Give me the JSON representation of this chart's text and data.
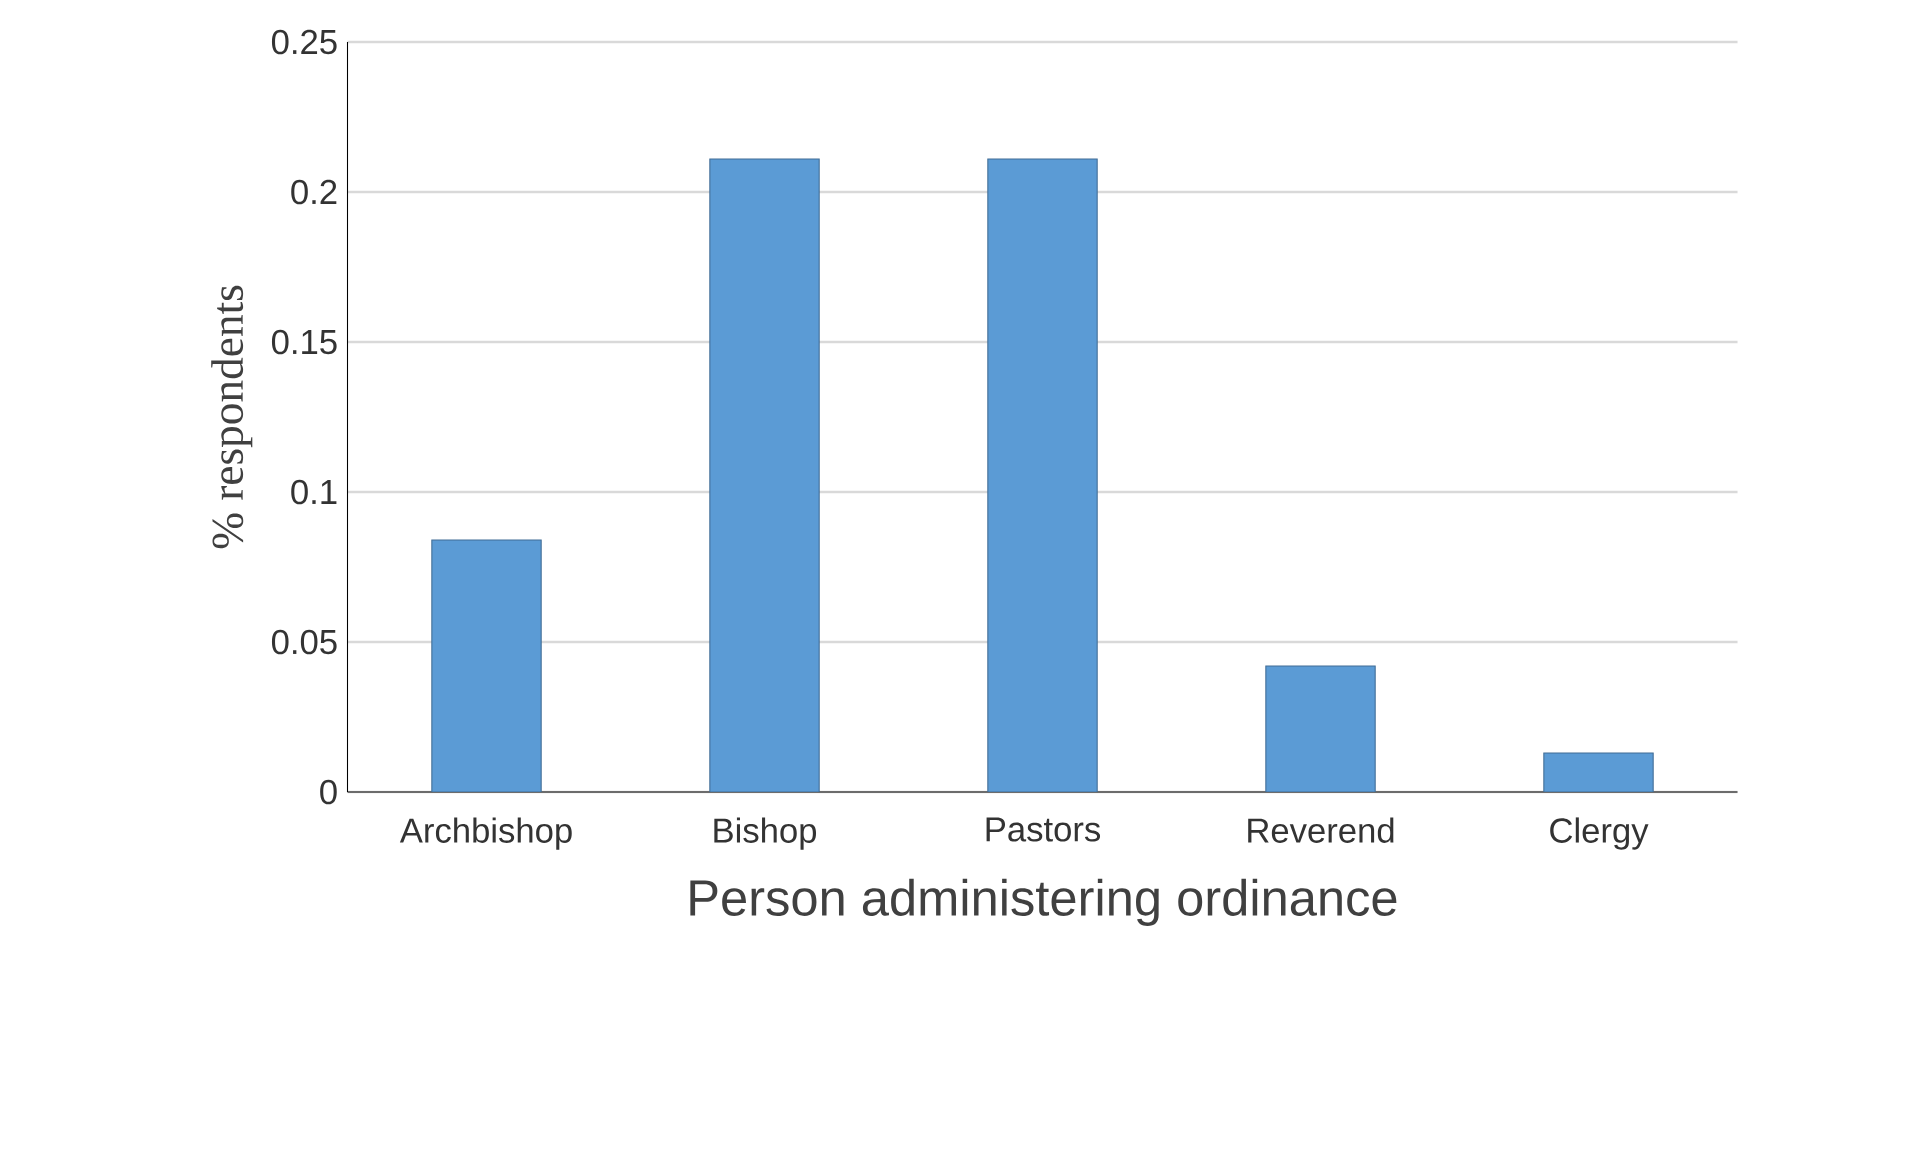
{
  "chart_data": {
    "type": "bar",
    "xlabel": "Person administering ordinance",
    "ylabel": "% respondents",
    "categories": [
      "Archbishop",
      "Bishop",
      "Pastors",
      "Reverend",
      "Clergy"
    ],
    "values": [
      0.084,
      0.211,
      0.211,
      0.042,
      0.013
    ],
    "color": "#5b9bd5",
    "ylim": [
      0,
      0.25
    ],
    "yticks": [
      0,
      0.05,
      0.1,
      0.15,
      0.2,
      0.25
    ],
    "grid": "y"
  }
}
